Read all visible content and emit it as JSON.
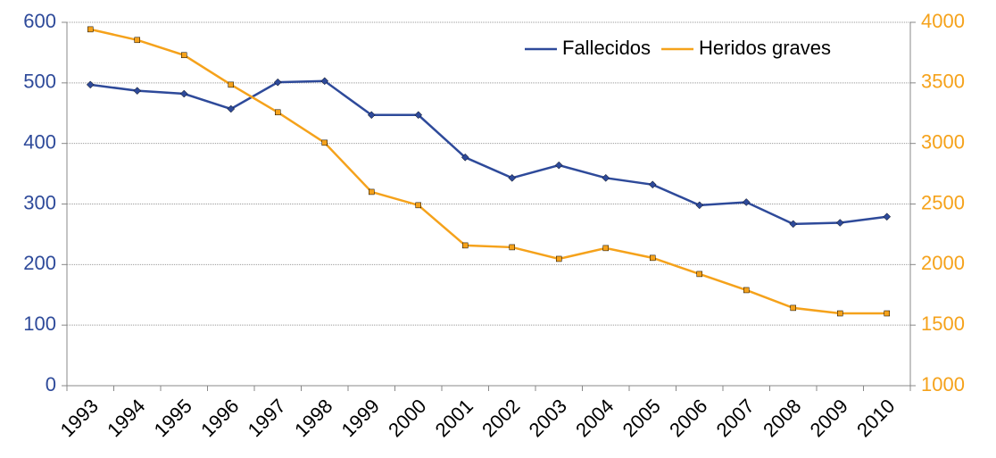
{
  "chart_data": {
    "type": "line",
    "categories": [
      "1993",
      "1994",
      "1995",
      "1996",
      "1997",
      "1998",
      "1999",
      "2000",
      "2001",
      "2002",
      "2003",
      "2004",
      "2005",
      "2006",
      "2007",
      "2008",
      "2009",
      "2010"
    ],
    "series": [
      {
        "name": "Fallecidos",
        "color": "#2e4a9a",
        "values": [
          497,
          487,
          482,
          457,
          501,
          503,
          447,
          447,
          377,
          343,
          364,
          343,
          332,
          298,
          303,
          267,
          269,
          279
        ]
      },
      {
        "name": "Heridos graves",
        "color": "#f5a21b",
        "axis": "y2",
        "values": [
          3942,
          3854,
          3729,
          3485,
          3257,
          3006,
          2600,
          2490,
          2158,
          2143,
          2047,
          2136,
          2055,
          1922,
          1789,
          1642,
          1597,
          1597
        ]
      }
    ],
    "ylim": [
      0,
      600
    ],
    "yticks": [
      0,
      100,
      200,
      300,
      400,
      500,
      600
    ],
    "y2lim": [
      1000,
      4000
    ],
    "y2ticks": [
      1000,
      1500,
      2000,
      2500,
      3000,
      3500,
      4000
    ],
    "grid": true,
    "legend": "top-right"
  }
}
